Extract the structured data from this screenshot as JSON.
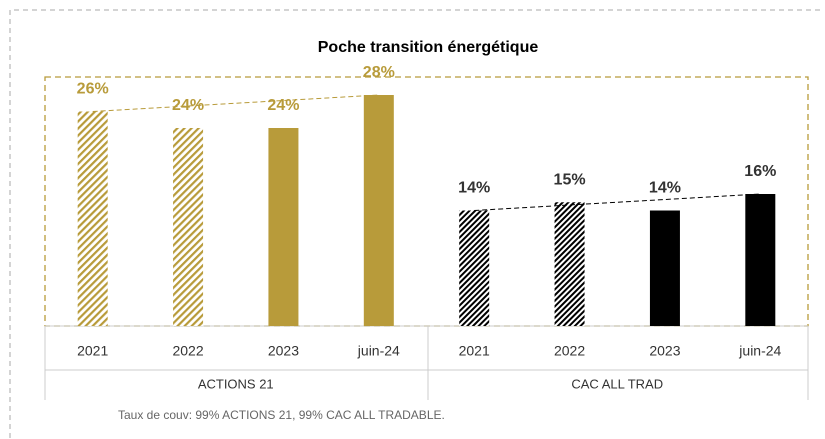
{
  "chart_data": {
    "type": "bar",
    "title": "Poche transition énergétique",
    "categories": [
      "2021",
      "2022",
      "2023",
      "juin-24"
    ],
    "hatched": [
      true,
      true,
      false,
      false
    ],
    "series": [
      {
        "name": "ACTIONS 21",
        "color": "#b89b3a",
        "values": [
          26,
          24,
          24,
          28
        ],
        "value_labels": [
          "26%",
          "24%",
          "24%",
          "28%"
        ]
      },
      {
        "name": "CAC ALL TRAD",
        "color": "#000000",
        "values": [
          14,
          15,
          14,
          16
        ],
        "value_labels": [
          "14%",
          "15%",
          "14%",
          "16%"
        ]
      }
    ],
    "footnote": "Taux de couv: 99% ACTIONS 21, 99% CAC ALL TRADABLE."
  }
}
